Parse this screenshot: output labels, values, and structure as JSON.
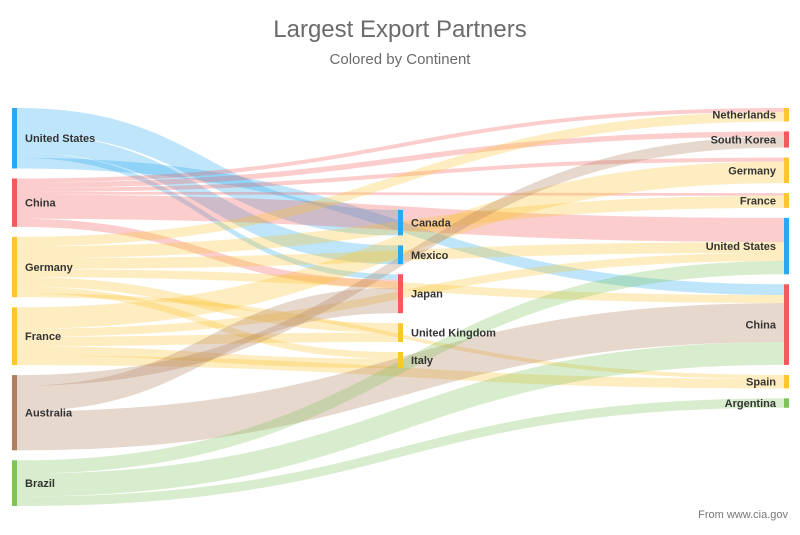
{
  "chart_data": {
    "type": "sankey",
    "title": "Largest Export Partners",
    "subtitle": "Colored by Continent",
    "credit": "From www.cia.gov",
    "continent_colors": {
      "North America": "#29a9f0",
      "Asia": "#f25b5b",
      "Europe": "#fdc530",
      "Oceania": "#b07f5e",
      "South America": "#7fc45a"
    },
    "columns": [
      [
        {
          "id": "src_us",
          "label": "United States",
          "continent": "North America"
        },
        {
          "id": "src_cn",
          "label": "China",
          "continent": "Asia"
        },
        {
          "id": "src_de",
          "label": "Germany",
          "continent": "Europe"
        },
        {
          "id": "src_fr",
          "label": "France",
          "continent": "Europe"
        },
        {
          "id": "src_au",
          "label": "Australia",
          "continent": "Oceania"
        },
        {
          "id": "src_br",
          "label": "Brazil",
          "continent": "South America"
        }
      ],
      [
        {
          "id": "mid_ca",
          "label": "Canada",
          "continent": "North America"
        },
        {
          "id": "mid_mx",
          "label": "Mexico",
          "continent": "North America"
        },
        {
          "id": "mid_jp",
          "label": "Japan",
          "continent": "Asia"
        },
        {
          "id": "mid_uk",
          "label": "United Kingdom",
          "continent": "Europe"
        },
        {
          "id": "mid_it",
          "label": "Italy",
          "continent": "Europe"
        }
      ],
      [
        {
          "id": "dst_nl",
          "label": "Netherlands",
          "continent": "Europe"
        },
        {
          "id": "dst_kr",
          "label": "South Korea",
          "continent": "Asia"
        },
        {
          "id": "dst_de",
          "label": "Germany",
          "continent": "Europe"
        },
        {
          "id": "dst_fr",
          "label": "France",
          "continent": "Europe"
        },
        {
          "id": "dst_us",
          "label": "United States",
          "continent": "North America"
        },
        {
          "id": "dst_cn",
          "label": "China",
          "continent": "Asia"
        },
        {
          "id": "dst_es",
          "label": "Spain",
          "continent": "Europe"
        },
        {
          "id": "dst_ar",
          "label": "Argentina",
          "continent": "South America"
        }
      ]
    ],
    "links": [
      {
        "source": "src_us",
        "target": "mid_ca",
        "value": 19
      },
      {
        "source": "src_us",
        "target": "mid_mx",
        "value": 14
      },
      {
        "source": "src_us",
        "target": "mid_jp",
        "value": 4
      },
      {
        "source": "src_us",
        "target": "dst_cn",
        "value": 8
      },
      {
        "source": "src_cn",
        "target": "dst_us",
        "value": 18
      },
      {
        "source": "src_cn",
        "target": "mid_jp",
        "value": 6
      },
      {
        "source": "src_cn",
        "target": "dst_kr",
        "value": 4
      },
      {
        "source": "src_cn",
        "target": "dst_de",
        "value": 3
      },
      {
        "source": "src_cn",
        "target": "dst_nl",
        "value": 3
      },
      {
        "source": "src_cn",
        "target": "dst_fr",
        "value": 2
      },
      {
        "source": "src_de",
        "target": "dst_fr",
        "value": 9
      },
      {
        "source": "src_de",
        "target": "dst_us",
        "value": 8
      },
      {
        "source": "src_de",
        "target": "mid_uk",
        "value": 7
      },
      {
        "source": "src_de",
        "target": "dst_nl",
        "value": 7
      },
      {
        "source": "src_de",
        "target": "dst_cn",
        "value": 6
      },
      {
        "source": "src_de",
        "target": "mid_it",
        "value": 5
      },
      {
        "source": "src_de",
        "target": "dst_es",
        "value": 3
      },
      {
        "source": "src_fr",
        "target": "dst_de",
        "value": 16
      },
      {
        "source": "src_fr",
        "target": "mid_it",
        "value": 7
      },
      {
        "source": "src_fr",
        "target": "dst_es",
        "value": 7
      },
      {
        "source": "src_fr",
        "target": "mid_uk",
        "value": 7
      },
      {
        "source": "src_fr",
        "target": "dst_us",
        "value": 6
      },
      {
        "source": "src_au",
        "target": "dst_cn",
        "value": 29
      },
      {
        "source": "src_au",
        "target": "mid_jp",
        "value": 19
      },
      {
        "source": "src_au",
        "target": "dst_kr",
        "value": 8
      },
      {
        "source": "src_br",
        "target": "dst_cn",
        "value": 17
      },
      {
        "source": "src_br",
        "target": "dst_us",
        "value": 10
      },
      {
        "source": "src_br",
        "target": "dst_ar",
        "value": 7
      }
    ]
  }
}
